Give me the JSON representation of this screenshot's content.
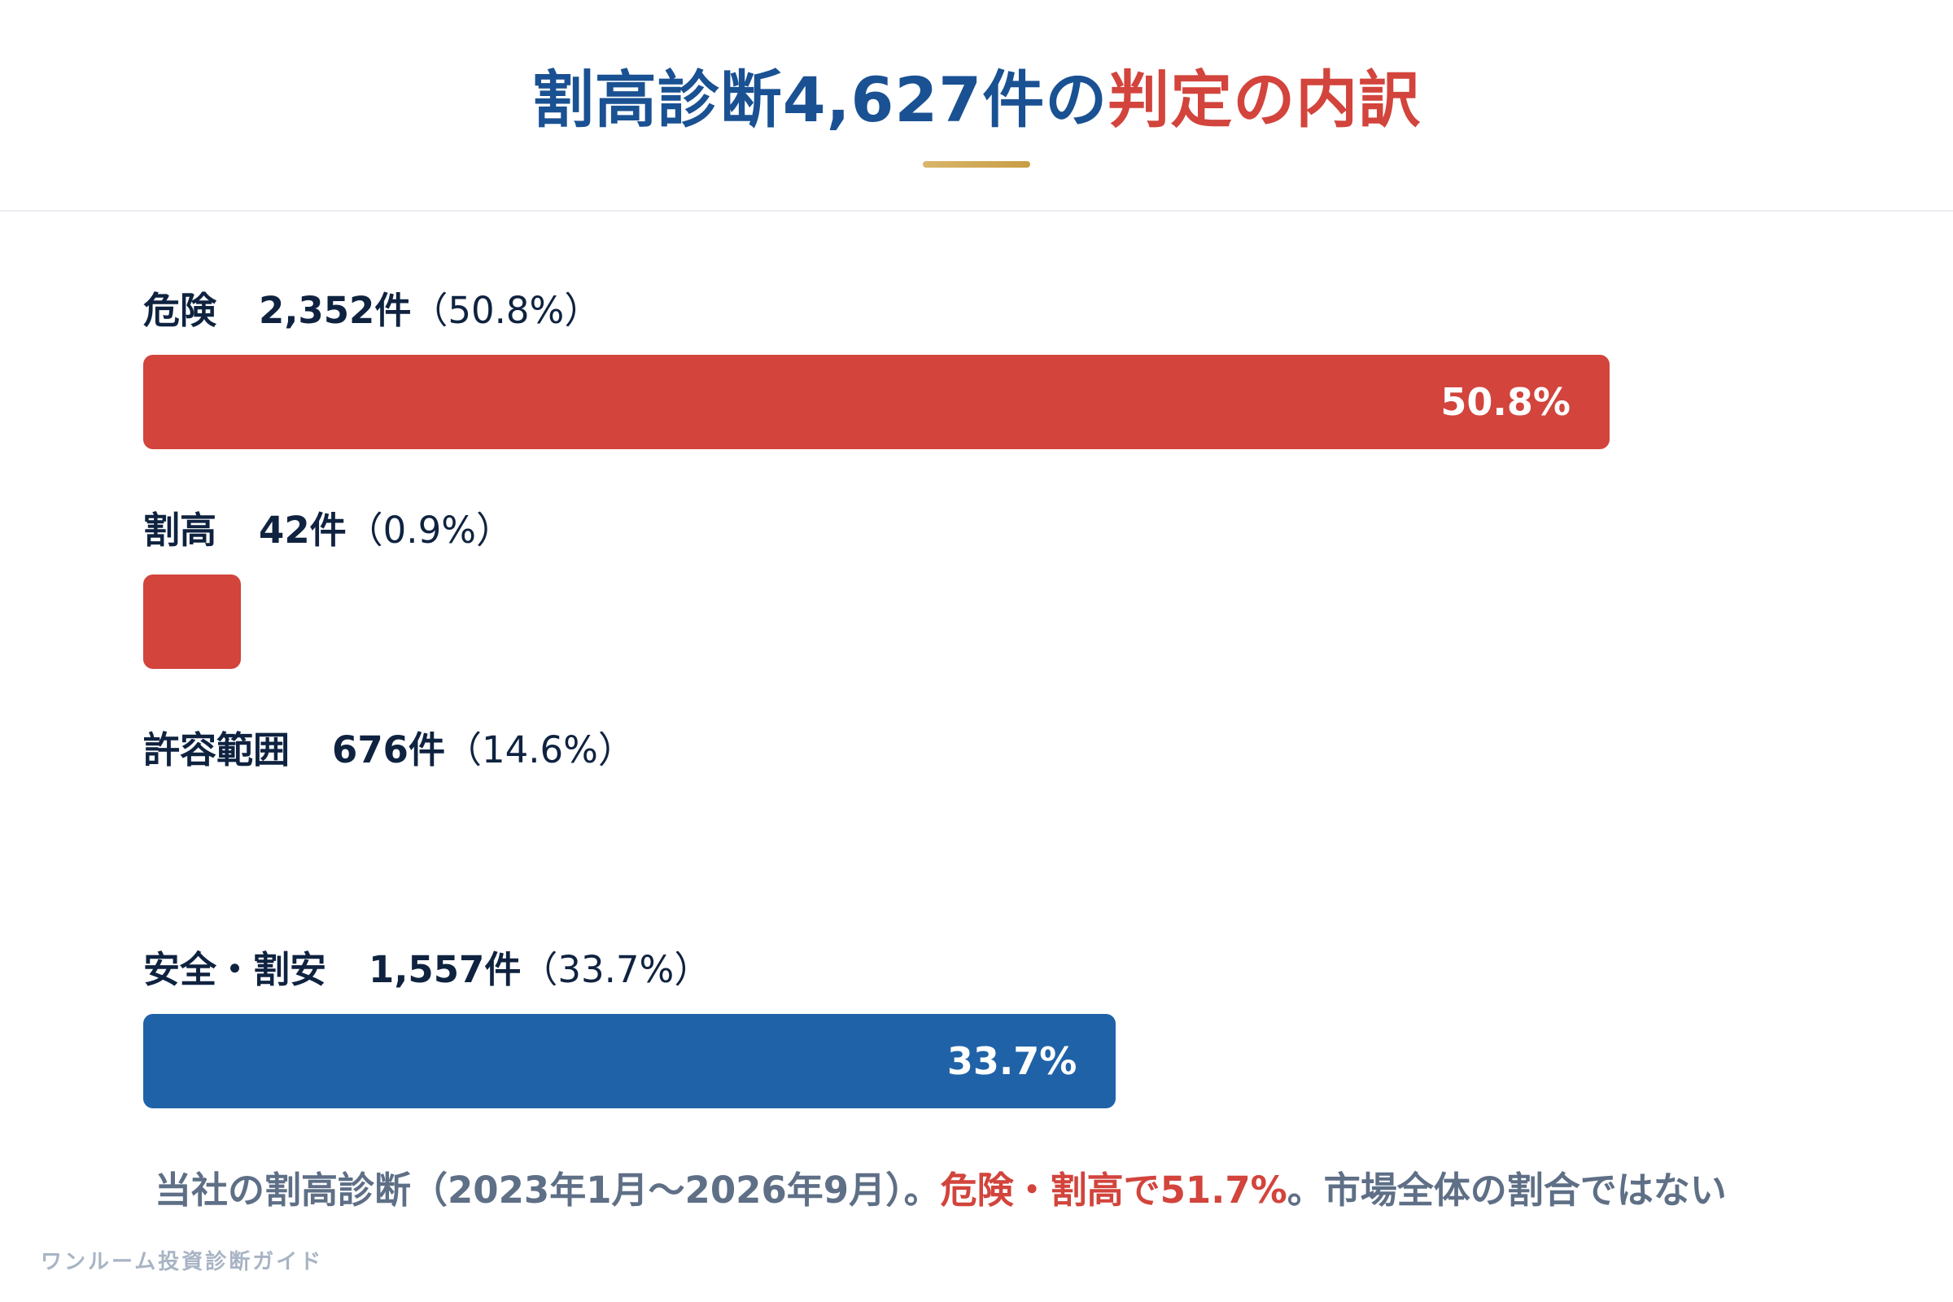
{
  "title": {
    "part1": "割高診断4,627件の",
    "part2": "判定の内訳"
  },
  "chart_data": {
    "type": "bar",
    "orientation": "horizontal",
    "categories": [
      "危険",
      "割高",
      "許容範囲",
      "安全・割安"
    ],
    "counts": [
      2352,
      42,
      676,
      1557
    ],
    "values": [
      50.8,
      0.9,
      14.6,
      33.7
    ],
    "unit": "%",
    "rows": [
      {
        "name": "危険",
        "count_text": "2,352件",
        "pct_text": "（50.8%）",
        "value": 50.8,
        "bar_label": "50.8%",
        "color": "#d2443c"
      },
      {
        "name": "割高",
        "count_text": "42件",
        "pct_text": "（0.9%）",
        "value": 0.9,
        "bar_label": "",
        "color": "#d2443c"
      },
      {
        "name": "許容範囲",
        "count_text": "676件",
        "pct_text": "（14.6%）",
        "value": 14.6,
        "bar_label": "",
        "color": "#ffffff"
      },
      {
        "name": "安全・割安",
        "count_text": "1,557件",
        "pct_text": "（33.7%）",
        "value": 33.7,
        "bar_label": "33.7%",
        "color": "#2062a8"
      }
    ]
  },
  "caption": {
    "part1": "当社の割高診断（2023年1月～2026年9月）。",
    "part2": "危険・割高で51.7%",
    "part3": "。市場全体の割合ではない"
  },
  "footer": {
    "brand": "ワンルーム投資診断ガイド"
  },
  "colors": {
    "brand_blue": "#1a5192",
    "accent_red": "#d2443c",
    "bar_blue": "#2062a8",
    "gold": "#c89d44"
  }
}
